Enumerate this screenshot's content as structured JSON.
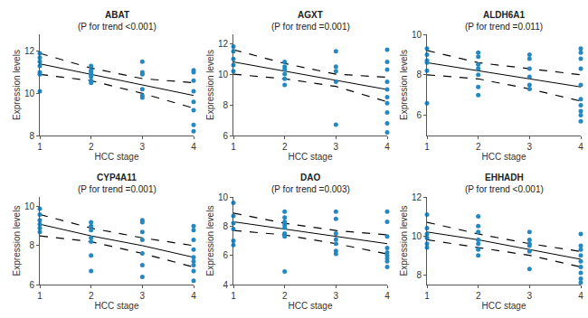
{
  "chart_data": [
    {
      "type": "scatter",
      "title": "ABAT",
      "subtitle": "(P for trend <0.001)",
      "x_label": "HCC stage",
      "y_label": "Expression levels",
      "x": [
        1,
        1,
        1,
        1,
        1,
        1,
        1,
        2,
        2,
        2,
        2,
        2,
        2,
        2,
        3,
        3,
        3,
        3,
        3,
        3,
        4,
        4,
        4,
        4,
        4,
        4,
        4,
        4
      ],
      "values": [
        11.9,
        11.7,
        11.5,
        11.3,
        11.0,
        10.9,
        10.1,
        11.3,
        11.1,
        11.0,
        10.9,
        10.8,
        10.6,
        10.5,
        11.5,
        11.0,
        10.9,
        10.2,
        9.9,
        9.8,
        11.1,
        11.0,
        10.6,
        10.1,
        9.6,
        9.2,
        8.5,
        8.2
      ],
      "color": "#2389c0",
      "marker": "circle",
      "fit": {
        "x": [
          1,
          2,
          3,
          4
        ],
        "values": [
          11.4,
          10.9,
          10.4,
          9.9
        ],
        "line_style": "solid",
        "color": "#000000"
      },
      "ci": {
        "x": [
          1,
          2,
          3,
          4
        ],
        "lower": [
          10.9,
          10.6,
          10.0,
          9.3
        ],
        "upper": [
          11.9,
          11.2,
          10.7,
          10.5
        ],
        "line_style": "dashed",
        "color": "#000000"
      },
      "xlim": [
        1,
        4
      ],
      "xticks": [
        1,
        2,
        3,
        4
      ],
      "ylim": [
        8,
        12.8
      ],
      "yticks": [
        8,
        10,
        12
      ],
      "grid": false
    },
    {
      "type": "scatter",
      "title": "AGXT",
      "subtitle": "(P for trend =0.001)",
      "x_label": "HCC stage",
      "y_label": "Expression levels",
      "x": [
        1,
        1,
        1,
        1,
        1,
        2,
        2,
        2,
        2,
        2,
        2,
        3,
        3,
        3,
        3,
        3,
        4,
        4,
        4,
        4,
        4,
        4,
        4,
        4,
        4,
        4
      ],
      "values": [
        11.8,
        11.5,
        11.0,
        10.6,
        10.2,
        10.8,
        10.5,
        10.3,
        10.0,
        9.7,
        9.3,
        11.5,
        10.5,
        10.2,
        9.5,
        6.7,
        11.6,
        10.8,
        10.3,
        9.5,
        9.0,
        8.5,
        8.1,
        7.5,
        6.8,
        6.2
      ],
      "color": "#2389c0",
      "marker": "circle",
      "fit": {
        "x": [
          1,
          2,
          3,
          4
        ],
        "values": [
          10.8,
          10.2,
          9.6,
          9.0
        ],
        "line_style": "solid",
        "color": "#000000"
      },
      "ci": {
        "x": [
          1,
          2,
          3,
          4
        ],
        "lower": [
          10.0,
          9.7,
          9.2,
          8.2
        ],
        "upper": [
          11.6,
          10.7,
          10.0,
          9.8
        ],
        "line_style": "dashed",
        "color": "#000000"
      },
      "xlim": [
        1,
        4
      ],
      "xticks": [
        1,
        2,
        3,
        4
      ],
      "ylim": [
        6,
        12.6
      ],
      "yticks": [
        6,
        8,
        10,
        12
      ],
      "grid": false
    },
    {
      "type": "scatter",
      "title": "ALDH6A1",
      "subtitle": "(P for trend =0.011)",
      "x_label": "HCC stage",
      "y_label": "Expression levels",
      "x": [
        1,
        1,
        1,
        1,
        1,
        1,
        2,
        2,
        2,
        2,
        2,
        2,
        2,
        3,
        3,
        3,
        3,
        3,
        3,
        4,
        4,
        4,
        4,
        4,
        4,
        4,
        4,
        4,
        4
      ],
      "values": [
        9.3,
        9.0,
        8.7,
        8.6,
        8.2,
        6.6,
        9.1,
        8.9,
        8.5,
        8.3,
        8.0,
        7.4,
        7.0,
        9.0,
        8.8,
        8.3,
        7.9,
        7.5,
        7.3,
        9.3,
        9.1,
        8.8,
        8.3,
        7.5,
        6.8,
        6.5,
        6.2,
        6.0,
        5.7
      ],
      "color": "#2389c0",
      "marker": "circle",
      "fit": {
        "x": [
          1,
          2,
          3,
          4
        ],
        "values": [
          8.6,
          8.2,
          7.8,
          7.4
        ],
        "line_style": "solid",
        "color": "#000000"
      },
      "ci": {
        "x": [
          1,
          2,
          3,
          4
        ],
        "lower": [
          8.0,
          7.8,
          7.3,
          6.7
        ],
        "upper": [
          9.2,
          8.6,
          8.3,
          8.0
        ],
        "line_style": "dashed",
        "color": "#000000"
      },
      "xlim": [
        1,
        4
      ],
      "xticks": [
        1,
        2,
        3,
        4
      ],
      "ylim": [
        5,
        10
      ],
      "yticks": [
        6,
        8,
        10
      ],
      "grid": false
    },
    {
      "type": "scatter",
      "title": "CYP4A11",
      "subtitle": "(P for trend =0.001)",
      "x_label": "HCC stage",
      "y_label": "Expression levels",
      "x": [
        1,
        1,
        1,
        1,
        1,
        1,
        2,
        2,
        2,
        2,
        2,
        2,
        2,
        3,
        3,
        3,
        3,
        3,
        3,
        3,
        4,
        4,
        4,
        4,
        4,
        4,
        4,
        4,
        4
      ],
      "values": [
        9.9,
        9.6,
        9.3,
        9.1,
        8.9,
        8.7,
        9.2,
        9.0,
        8.8,
        8.4,
        8.2,
        7.5,
        6.7,
        9.3,
        9.2,
        8.7,
        8.3,
        7.6,
        7.0,
        6.4,
        9.0,
        8.8,
        8.3,
        7.8,
        7.4,
        7.2,
        7.0,
        6.7,
        6.2
      ],
      "color": "#2389c0",
      "marker": "circle",
      "fit": {
        "x": [
          1,
          2,
          3,
          4
        ],
        "values": [
          9.1,
          8.5,
          8.0,
          7.4
        ],
        "line_style": "solid",
        "color": "#000000"
      },
      "ci": {
        "x": [
          1,
          2,
          3,
          4
        ],
        "lower": [
          8.5,
          8.2,
          7.6,
          6.9
        ],
        "upper": [
          9.6,
          8.9,
          8.4,
          8.0
        ],
        "line_style": "dashed",
        "color": "#000000"
      },
      "xlim": [
        1,
        4
      ],
      "xticks": [
        1,
        2,
        3,
        4
      ],
      "ylim": [
        6,
        10.5
      ],
      "yticks": [
        6,
        8,
        10
      ],
      "grid": false
    },
    {
      "type": "scatter",
      "title": "DAO",
      "subtitle": "(P for trend =0.003)",
      "x_label": "HCC stage",
      "y_label": "Expression levels",
      "x": [
        1,
        1,
        1,
        1,
        1,
        1,
        2,
        2,
        2,
        2,
        2,
        2,
        2,
        2,
        3,
        3,
        3,
        3,
        3,
        3,
        3,
        4,
        4,
        4,
        4,
        4,
        4,
        4,
        4,
        4
      ],
      "values": [
        9.6,
        8.7,
        8.2,
        7.8,
        7.0,
        6.7,
        9.0,
        8.6,
        8.3,
        8.1,
        7.9,
        7.5,
        7.3,
        4.9,
        9.0,
        8.5,
        7.5,
        7.1,
        6.8,
        6.3,
        6.1,
        9.0,
        8.3,
        7.3,
        6.5,
        6.2,
        6.0,
        5.8,
        5.6,
        5.2
      ],
      "color": "#2389c0",
      "marker": "circle",
      "fit": {
        "x": [
          1,
          2,
          3,
          4
        ],
        "values": [
          8.3,
          7.8,
          7.3,
          6.8
        ],
        "line_style": "solid",
        "color": "#000000"
      },
      "ci": {
        "x": [
          1,
          2,
          3,
          4
        ],
        "lower": [
          7.7,
          7.4,
          6.8,
          6.1
        ],
        "upper": [
          8.9,
          8.2,
          7.7,
          7.4
        ],
        "line_style": "dashed",
        "color": "#000000"
      },
      "xlim": [
        1,
        4
      ],
      "xticks": [
        1,
        2,
        3,
        4
      ],
      "ylim": [
        4,
        10
      ],
      "yticks": [
        4,
        6,
        8,
        10
      ],
      "grid": false
    },
    {
      "type": "scatter",
      "title": "EHHADH",
      "subtitle": "(P for trend <0.001)",
      "x_label": "HCC stage",
      "y_label": "Expression levels",
      "x": [
        1,
        1,
        1,
        1,
        1,
        1,
        2,
        2,
        2,
        2,
        2,
        2,
        2,
        3,
        3,
        3,
        3,
        3,
        3,
        4,
        4,
        4,
        4,
        4,
        4,
        4,
        4,
        4
      ],
      "values": [
        11.1,
        10.4,
        10.1,
        9.9,
        9.6,
        9.4,
        11.0,
        10.5,
        10.2,
        9.8,
        9.6,
        9.3,
        9.0,
        10.2,
        9.8,
        9.6,
        9.5,
        9.2,
        8.3,
        10.1,
        9.5,
        9.3,
        9.0,
        8.7,
        8.4,
        8.1,
        7.8,
        7.6
      ],
      "color": "#2389c0",
      "marker": "circle",
      "fit": {
        "x": [
          1,
          2,
          3,
          4
        ],
        "values": [
          10.2,
          9.8,
          9.3,
          8.8
        ],
        "line_style": "solid",
        "color": "#000000"
      },
      "ci": {
        "x": [
          1,
          2,
          3,
          4
        ],
        "lower": [
          9.8,
          9.4,
          9.0,
          8.4
        ],
        "upper": [
          10.7,
          10.1,
          9.6,
          9.2
        ],
        "line_style": "dashed",
        "color": "#000000"
      },
      "xlim": [
        1,
        4
      ],
      "xticks": [
        1,
        2,
        3,
        4
      ],
      "ylim": [
        7.5,
        12
      ],
      "yticks": [
        8,
        10,
        12
      ],
      "grid": false
    }
  ]
}
